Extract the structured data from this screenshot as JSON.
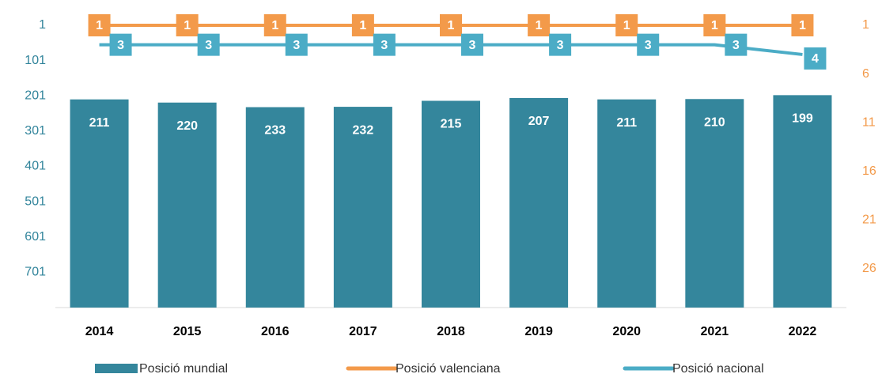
{
  "chart_data": {
    "type": "bar",
    "categories": [
      "2014",
      "2015",
      "2016",
      "2017",
      "2018",
      "2019",
      "2020",
      "2021",
      "2022"
    ],
    "series": [
      {
        "name": "Posició mundial",
        "type": "bar",
        "color": "#34869c",
        "values": [
          211,
          220,
          233,
          232,
          215,
          207,
          211,
          210,
          199
        ]
      },
      {
        "name": "Posició valenciana",
        "type": "line",
        "axis": "y2",
        "color": "#f39a4a",
        "values": [
          1,
          1,
          1,
          1,
          1,
          1,
          1,
          1,
          1
        ]
      },
      {
        "name": "Posició nacional",
        "type": "line",
        "axis": "y2",
        "color": "#4bacc6",
        "values": [
          3,
          3,
          3,
          3,
          3,
          3,
          3,
          3,
          4
        ]
      }
    ],
    "ylim": [
      1,
      801
    ],
    "yticks": [
      1,
      101,
      201,
      301,
      401,
      501,
      601,
      701
    ],
    "y_reversed": true,
    "ytick_color": "#31849b",
    "y2lim": [
      1,
      30
    ],
    "y2ticks": [
      1,
      6,
      11,
      16,
      21,
      26
    ],
    "y2_reversed": true,
    "y2tick_color": "#f39a4a",
    "data_labels": true,
    "legend": "bottom"
  }
}
